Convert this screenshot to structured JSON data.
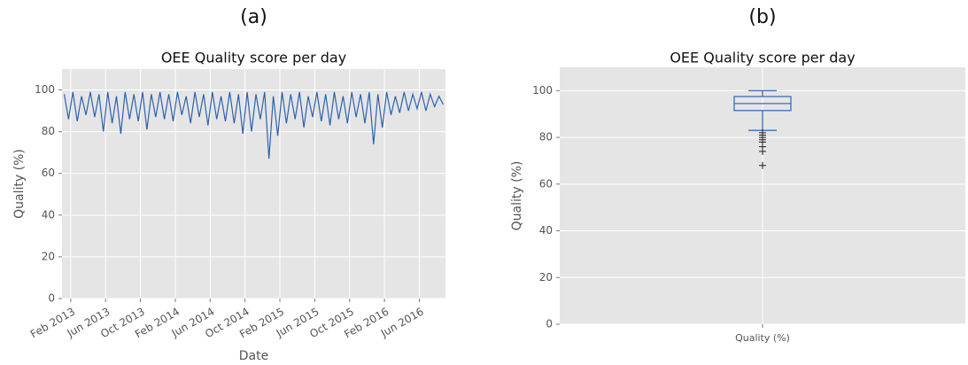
{
  "chart_data": [
    {
      "type": "line",
      "panel_label": "(a)",
      "title": "OEE Quality score per day",
      "xlabel": "Date",
      "ylabel": "Quality (%)",
      "x": [
        "2013-01",
        "2013-01",
        "2013-02",
        "2013-02",
        "2013-03",
        "2013-03",
        "2013-04",
        "2013-04",
        "2013-05",
        "2013-05",
        "2013-06",
        "2013-06",
        "2013-07",
        "2013-07",
        "2013-08",
        "2013-08",
        "2013-09",
        "2013-09",
        "2013-10",
        "2013-10",
        "2013-11",
        "2013-11",
        "2013-12",
        "2013-12",
        "2014-01",
        "2014-01",
        "2014-02",
        "2014-02",
        "2014-03",
        "2014-03",
        "2014-04",
        "2014-04",
        "2014-05",
        "2014-05",
        "2014-06",
        "2014-06",
        "2014-07",
        "2014-07",
        "2014-08",
        "2014-08",
        "2014-09",
        "2014-09",
        "2014-10",
        "2014-10",
        "2014-11",
        "2014-11",
        "2014-12",
        "2014-12",
        "2015-01",
        "2015-01",
        "2015-02",
        "2015-02",
        "2015-03",
        "2015-03",
        "2015-04",
        "2015-04",
        "2015-05",
        "2015-05",
        "2015-06",
        "2015-06",
        "2015-07",
        "2015-07",
        "2015-08",
        "2015-08",
        "2015-09",
        "2015-09",
        "2015-10",
        "2015-10",
        "2015-11",
        "2015-11",
        "2015-12",
        "2015-12",
        "2016-01",
        "2016-01",
        "2016-02",
        "2016-02",
        "2016-03",
        "2016-03",
        "2016-04",
        "2016-04",
        "2016-05",
        "2016-05",
        "2016-06",
        "2016-06",
        "2016-07",
        "2016-07",
        "2016-08",
        "2016-08"
      ],
      "series": [
        {
          "name": "Quality",
          "color": "#2c62b0",
          "values": [
            98,
            86,
            99,
            85,
            97,
            88,
            99,
            87,
            98,
            80,
            99,
            84,
            97,
            79,
            99,
            86,
            98,
            85,
            99,
            81,
            98,
            87,
            99,
            86,
            98,
            85,
            99,
            88,
            97,
            84,
            99,
            87,
            98,
            83,
            99,
            86,
            97,
            85,
            99,
            84,
            98,
            79,
            99,
            80,
            98,
            86,
            99,
            67,
            97,
            78,
            99,
            84,
            98,
            86,
            99,
            82,
            97,
            87,
            99,
            85,
            98,
            83,
            99,
            86,
            97,
            84,
            99,
            87,
            98,
            84,
            99,
            74,
            98,
            82,
            99,
            88,
            97,
            89,
            99,
            90,
            98,
            91,
            99,
            90,
            98,
            92,
            97,
            93
          ]
        }
      ],
      "xlim": [
        "2013-01",
        "2016-09"
      ],
      "xticks": [
        {
          "value": "2013-02",
          "label": "Feb 2013"
        },
        {
          "value": "2013-06",
          "label": "Jun 2013"
        },
        {
          "value": "2013-10",
          "label": "Oct 2013"
        },
        {
          "value": "2014-02",
          "label": "Feb 2014"
        },
        {
          "value": "2014-06",
          "label": "Jun 2014"
        },
        {
          "value": "2014-10",
          "label": "Oct 2014"
        },
        {
          "value": "2015-02",
          "label": "Feb 2015"
        },
        {
          "value": "2015-06",
          "label": "Jun 2015"
        },
        {
          "value": "2015-10",
          "label": "Oct 2015"
        },
        {
          "value": "2016-02",
          "label": "Feb 2016"
        },
        {
          "value": "2016-06",
          "label": "Jun 2016"
        }
      ],
      "ylim": [
        0,
        110
      ],
      "yticks": [
        0,
        20,
        40,
        60,
        80,
        100
      ],
      "grid": true
    },
    {
      "type": "box",
      "panel_label": "(b)",
      "title": "OEE Quality score per day",
      "ylabel": "Quality (%)",
      "categories": [
        "Quality (%)"
      ],
      "color": "#3a6fb5",
      "whislo": 83,
      "q1": 91.5,
      "med": 94.5,
      "q3": 97.5,
      "whishi": 100,
      "fliers": [
        82,
        81,
        80,
        79,
        78,
        76,
        74,
        68
      ],
      "ylim": [
        0,
        110
      ],
      "yticks": [
        0,
        20,
        40,
        60,
        80,
        100
      ],
      "grid": true
    }
  ]
}
